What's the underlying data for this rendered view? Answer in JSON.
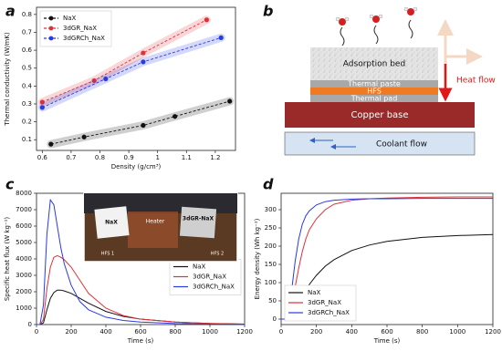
{
  "chart_data": [
    {
      "type": "line",
      "panel_label": "a",
      "x_label": "Density (g/cm³)",
      "y_label": "Thermal conductivity (W/mK)",
      "xlim": [
        0.58,
        1.27
      ],
      "xticks": [
        0.6,
        0.7,
        0.8,
        0.9,
        1.0,
        1.1,
        1.2
      ],
      "ylim": [
        0.04,
        0.84
      ],
      "yticks": [
        0.1,
        0.2,
        0.3,
        0.4,
        0.5,
        0.6,
        0.7,
        0.8
      ],
      "line_style": "dashed",
      "markers": true,
      "band": true,
      "legend": "upper left",
      "series": [
        {
          "name": "NaX",
          "color": "#111111",
          "x": [
            0.63,
            0.745,
            0.95,
            1.06,
            1.25
          ],
          "values": [
            0.075,
            0.115,
            0.18,
            0.23,
            0.315
          ]
        },
        {
          "name": "3dGR_NaX",
          "color": "#e0303a",
          "x": [
            0.6,
            0.78,
            0.95,
            1.17
          ],
          "values": [
            0.31,
            0.43,
            0.585,
            0.77
          ]
        },
        {
          "name": "3dGRCh_NaX",
          "color": "#2a3be0",
          "x": [
            0.6,
            0.82,
            0.95,
            1.22
          ],
          "values": [
            0.28,
            0.44,
            0.535,
            0.67
          ]
        }
      ]
    },
    {
      "type": "line",
      "panel_label": "c",
      "x_label": "Time (s)",
      "y_label": "Specific heat flux (W kg⁻¹)",
      "xlim": [
        0,
        1200
      ],
      "xticks": [
        0,
        200,
        400,
        600,
        800,
        1000,
        1200
      ],
      "ylim": [
        0,
        8000
      ],
      "yticks": [
        0,
        1000,
        2000,
        3000,
        4000,
        5000,
        6000,
        7000,
        8000
      ],
      "legend": "center right",
      "inset": {
        "labels": [
          "NaX",
          "Heater",
          "3dGR-NaX",
          "HFS 1",
          "HFS 2"
        ]
      },
      "x": [
        0,
        20,
        40,
        60,
        80,
        100,
        120,
        140,
        160,
        200,
        250,
        300,
        400,
        500,
        600,
        800,
        1000,
        1200
      ],
      "series": [
        {
          "name": "NaX",
          "color": "#111111",
          "values": [
            0,
            0,
            100,
            900,
            1600,
            1950,
            2100,
            2100,
            2050,
            1900,
            1600,
            1300,
            800,
            500,
            330,
            150,
            60,
            30
          ]
        },
        {
          "name": "3dGR_NaX",
          "color": "#e0303a",
          "values": [
            0,
            0,
            300,
            2200,
            3500,
            4100,
            4200,
            4100,
            3950,
            3500,
            2700,
            1900,
            1000,
            550,
            330,
            150,
            70,
            30
          ]
        },
        {
          "name": "3dGRCh_NaX",
          "color": "#2a3be0",
          "values": [
            0,
            0,
            1200,
            5500,
            7600,
            7300,
            6000,
            4700,
            3700,
            2400,
            1400,
            900,
            450,
            250,
            150,
            60,
            30,
            10
          ]
        }
      ]
    },
    {
      "type": "line",
      "panel_label": "d",
      "x_label": "Time (s)",
      "y_label": "Energy density (Wh kg⁻¹)",
      "xlim": [
        0,
        1200
      ],
      "xticks": [
        0,
        200,
        400,
        600,
        800,
        1000,
        1200
      ],
      "ylim": [
        -15,
        345
      ],
      "yticks": [
        0,
        50,
        100,
        150,
        200,
        250,
        300
      ],
      "legend": "lower left",
      "x": [
        0,
        20,
        40,
        60,
        80,
        100,
        120,
        140,
        160,
        200,
        250,
        300,
        400,
        500,
        600,
        800,
        1000,
        1200
      ],
      "series": [
        {
          "name": "NaX",
          "color": "#111111",
          "values": [
            0,
            0,
            0,
            5,
            20,
            40,
            60,
            80,
            95,
            120,
            145,
            163,
            188,
            203,
            213,
            224,
            229,
            232
          ]
        },
        {
          "name": "3dGR_NaX",
          "color": "#e0303a",
          "values": [
            0,
            0,
            5,
            40,
            90,
            140,
            185,
            220,
            245,
            275,
            300,
            315,
            326,
            330,
            332,
            334,
            335,
            335
          ]
        },
        {
          "name": "3dGRCh_NaX",
          "color": "#2a3be0",
          "values": [
            0,
            0,
            10,
            80,
            160,
            220,
            260,
            283,
            297,
            313,
            322,
            326,
            329,
            330,
            330,
            331,
            331,
            331
          ]
        }
      ]
    }
  ],
  "diagram": {
    "panel_label": "b",
    "adsorption_bed": "Adsorption bed",
    "thermal_paste": "Thermal paste",
    "hfs": "HFS",
    "thermal_pad": "Thermal pad",
    "copper_base": "Copper base",
    "coolant_flow": "Coolant flow",
    "heat_flow": "Heat flow"
  }
}
